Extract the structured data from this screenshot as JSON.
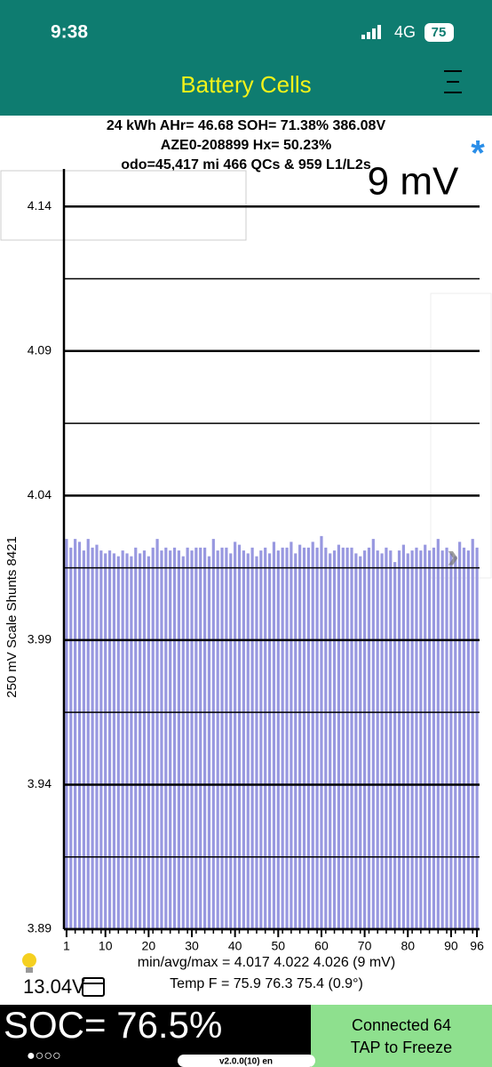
{
  "status_bar": {
    "time": "9:38",
    "network": "4G",
    "battery": "75"
  },
  "header": {
    "title": "Battery Cells"
  },
  "info": [
    "24 kWh  AHr= 46.68  SOH= 71.38%   386.08V",
    "AZE0-208899   Hx= 50.23%",
    "odo=45,417 mi 466 QCs & 959 L1/L2s"
  ],
  "chart_data": {
    "type": "bar",
    "annotation": "9 mV",
    "y_label": "250 mV Scale   Shunts 8421",
    "x": [
      1,
      2,
      3,
      4,
      5,
      6,
      7,
      8,
      9,
      10,
      11,
      12,
      13,
      14,
      15,
      16,
      17,
      18,
      19,
      20,
      21,
      22,
      23,
      24,
      25,
      26,
      27,
      28,
      29,
      30,
      31,
      32,
      33,
      34,
      35,
      36,
      37,
      38,
      39,
      40,
      41,
      42,
      43,
      44,
      45,
      46,
      47,
      48,
      49,
      50,
      51,
      52,
      53,
      54,
      55,
      56,
      57,
      58,
      59,
      60,
      61,
      62,
      63,
      64,
      65,
      66,
      67,
      68,
      69,
      70,
      71,
      72,
      73,
      74,
      75,
      76,
      77,
      78,
      79,
      80,
      81,
      82,
      83,
      84,
      85,
      86,
      87,
      88,
      89,
      90,
      91,
      92,
      93,
      94,
      95,
      96
    ],
    "values": [
      4.025,
      4.022,
      4.025,
      4.024,
      4.021,
      4.025,
      4.022,
      4.023,
      4.021,
      4.02,
      4.021,
      4.02,
      4.019,
      4.021,
      4.02,
      4.019,
      4.022,
      4.02,
      4.021,
      4.019,
      4.022,
      4.025,
      4.021,
      4.022,
      4.021,
      4.022,
      4.021,
      4.019,
      4.022,
      4.021,
      4.022,
      4.022,
      4.022,
      4.019,
      4.025,
      4.021,
      4.022,
      4.022,
      4.02,
      4.024,
      4.023,
      4.021,
      4.02,
      4.022,
      4.019,
      4.021,
      4.022,
      4.02,
      4.024,
      4.021,
      4.022,
      4.022,
      4.024,
      4.02,
      4.023,
      4.022,
      4.022,
      4.024,
      4.022,
      4.026,
      4.022,
      4.02,
      4.021,
      4.023,
      4.022,
      4.022,
      4.022,
      4.02,
      4.019,
      4.021,
      4.022,
      4.025,
      4.021,
      4.02,
      4.022,
      4.021,
      4.017,
      4.021,
      4.023,
      4.02,
      4.021,
      4.022,
      4.021,
      4.023,
      4.021,
      4.022,
      4.025,
      4.021,
      4.022,
      4.02,
      4.019,
      4.024,
      4.022,
      4.021,
      4.025,
      4.022
    ],
    "color": "#9898e0",
    "xlim": [
      0.4,
      96.6
    ],
    "xticks": [
      1,
      10,
      20,
      30,
      40,
      50,
      60,
      70,
      80,
      90,
      96
    ],
    "ylim": [
      3.89,
      4.153
    ],
    "yticks": [
      3.89,
      3.94,
      3.99,
      4.04,
      4.09,
      4.14
    ],
    "minor_yticks": [
      3.915,
      3.965,
      4.015,
      4.065,
      4.115
    ],
    "grid": true,
    "stats": [
      "min/avg/max = 4.017 4.022 4.026  (9 mV)",
      "Temp F = 75.9  76.3  75.4  (0.9°)"
    ]
  },
  "aux_voltage": "13.04V",
  "soc": "SOC= 76.5%",
  "page_dots": "●○○○",
  "connection": [
    "Connected 64",
    "TAP to Freeze"
  ],
  "version": "v2.0.0(10) en"
}
